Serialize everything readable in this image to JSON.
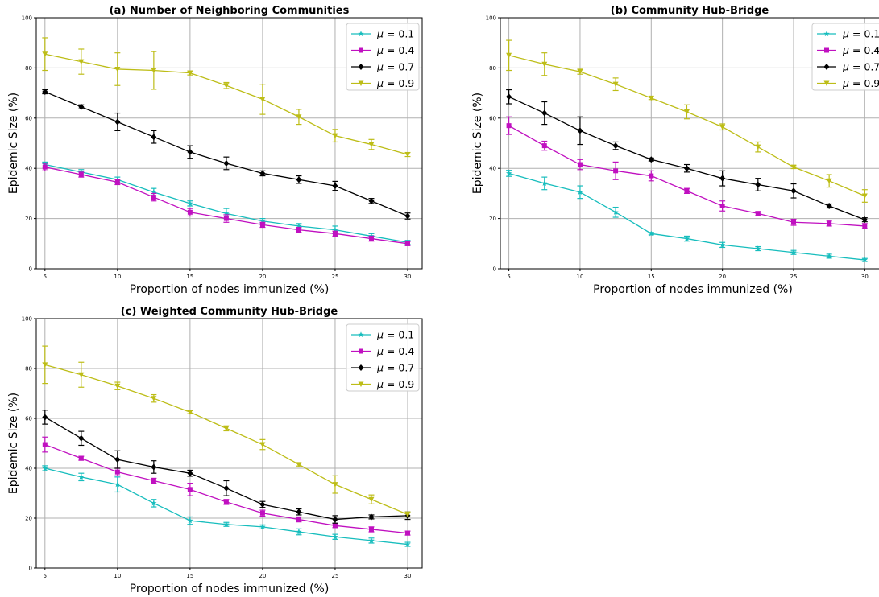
{
  "chart_data": [
    {
      "type": "line",
      "title": "(a)   Number of Neighboring Communities",
      "xlabel": "Proportion of nodes immunized (%)",
      "ylabel": "Epidemic Size (%)",
      "xlim": [
        4.4,
        31.0
      ],
      "ylim": [
        0,
        100
      ],
      "xticks": [
        5,
        10,
        15,
        20,
        25,
        30
      ],
      "yticks": [
        0,
        20,
        40,
        60,
        80,
        100
      ],
      "grid": true,
      "legend_position": "top-right",
      "x": [
        5,
        7.5,
        10,
        12.5,
        15,
        17.5,
        20,
        22.5,
        25,
        27.5,
        30
      ],
      "series": [
        {
          "name": "μ = 0.1",
          "legend_symbol": "μ",
          "legend_value": " = 0.1",
          "color": "#17bdbd",
          "marker": "star",
          "values": [
            41.5,
            38.5,
            35.5,
            30.5,
            26,
            22,
            19,
            17,
            15.5,
            13,
            10.5
          ],
          "errors": [
            1,
            1,
            1,
            1.5,
            1,
            2,
            1,
            1,
            1.5,
            1,
            0.8
          ]
        },
        {
          "name": "μ = 0.4",
          "legend_symbol": "μ",
          "legend_value": " = 0.4",
          "color": "#c010c0",
          "marker": "square",
          "values": [
            40.5,
            37.5,
            34.5,
            28.5,
            22.5,
            20,
            17.5,
            15.5,
            14,
            12,
            10
          ],
          "errors": [
            1.5,
            1,
            1,
            1.5,
            1.5,
            1.5,
            1,
            1,
            1,
            1,
            0.8
          ]
        },
        {
          "name": "μ = 0.7",
          "legend_symbol": "μ",
          "legend_value": " = 0.7",
          "color": "#000000",
          "marker": "diamond",
          "values": [
            70.5,
            64.5,
            58.5,
            52.5,
            46.5,
            42,
            38,
            35.5,
            33,
            27,
            21
          ],
          "errors": [
            0.8,
            0.8,
            3.5,
            2.5,
            2.5,
            2.5,
            1,
            1.5,
            1.8,
            1,
            1.2
          ]
        },
        {
          "name": "μ = 0.9",
          "legend_symbol": "μ",
          "legend_value": " = 0.9",
          "color": "#bdbd17",
          "marker": "triangle-down",
          "values": [
            85.5,
            82.5,
            79.5,
            79,
            78,
            73,
            67.5,
            60.5,
            53,
            49.5,
            45.5
          ],
          "errors": [
            6.5,
            5,
            6.5,
            7.5,
            0.8,
            1.2,
            6,
            3,
            2.5,
            2,
            0.8
          ]
        }
      ]
    },
    {
      "type": "line",
      "title": "(b)   Community Hub-Bridge",
      "xlabel": "Proportion of nodes immunized (%)",
      "ylabel": "Epidemic Size (%)",
      "xlim": [
        4.4,
        31.0
      ],
      "ylim": [
        0,
        100
      ],
      "xticks": [
        5,
        10,
        15,
        20,
        25,
        30
      ],
      "yticks": [
        0,
        20,
        40,
        60,
        80,
        100
      ],
      "grid": true,
      "legend_position": "top-right",
      "x": [
        5,
        7.5,
        10,
        12.5,
        15,
        17.5,
        20,
        22.5,
        25,
        27.5,
        30
      ],
      "series": [
        {
          "name": "μ = 0.1",
          "legend_symbol": "μ",
          "legend_value": " = 0.1",
          "color": "#17bdbd",
          "marker": "star",
          "values": [
            38,
            34,
            30.5,
            22.5,
            14,
            12,
            9.5,
            8,
            6.5,
            5,
            3.5
          ],
          "errors": [
            1.2,
            2.5,
            2.5,
            2,
            0.5,
            1,
            1,
            0.8,
            0.8,
            0.8,
            0.6
          ]
        },
        {
          "name": "μ = 0.4",
          "legend_symbol": "μ",
          "legend_value": " = 0.4",
          "color": "#c010c0",
          "marker": "square",
          "values": [
            57,
            49,
            41.5,
            39,
            37,
            31,
            25,
            22,
            18.5,
            18,
            17
          ],
          "errors": [
            3.5,
            1.8,
            2,
            3.5,
            2,
            1,
            2,
            0.8,
            1.2,
            1,
            1
          ]
        },
        {
          "name": "μ = 0.7",
          "legend_symbol": "μ",
          "legend_value": " = 0.7",
          "color": "#000000",
          "marker": "diamond",
          "values": [
            68.5,
            62,
            55,
            49,
            43.5,
            40,
            36,
            33.5,
            31,
            25,
            19.5
          ],
          "errors": [
            2.8,
            4.5,
            5.5,
            1.5,
            0.6,
            1.5,
            3,
            2.5,
            2.8,
            0.8,
            0.8
          ]
        },
        {
          "name": "μ = 0.9",
          "legend_symbol": "μ",
          "legend_value": " = 0.9",
          "color": "#bdbd17",
          "marker": "triangle-down",
          "values": [
            85,
            81.5,
            78.5,
            73.5,
            68,
            62.5,
            56.5,
            48.5,
            40.5,
            35,
            29
          ],
          "errors": [
            6,
            4.5,
            1,
            2.5,
            0.6,
            2.8,
            1.2,
            2,
            0.6,
            2.5,
            2.5
          ]
        }
      ]
    },
    {
      "type": "line",
      "title": "(c)   Weighted Community Hub-Bridge",
      "xlabel": "Proportion of nodes immunized (%)",
      "ylabel": "Epidemic Size (%)",
      "xlim": [
        4.4,
        31.0
      ],
      "ylim": [
        0,
        100
      ],
      "xticks": [
        5,
        10,
        15,
        20,
        25,
        30
      ],
      "yticks": [
        0,
        20,
        40,
        60,
        80,
        100
      ],
      "grid": true,
      "legend_position": "top-right",
      "x": [
        5,
        7.5,
        10,
        12.5,
        15,
        17.5,
        20,
        22.5,
        25,
        27.5,
        30
      ],
      "series": [
        {
          "name": "μ = 0.1",
          "legend_symbol": "μ",
          "legend_value": " = 0.1",
          "color": "#17bdbd",
          "marker": "star",
          "values": [
            40,
            36.5,
            33.5,
            26,
            19,
            17.5,
            16.5,
            14.5,
            12.5,
            11,
            9.5
          ],
          "errors": [
            1,
            1.5,
            3,
            1.5,
            1.5,
            0.8,
            0.8,
            1.2,
            1,
            1,
            0.8
          ]
        },
        {
          "name": "μ = 0.4",
          "legend_symbol": "μ",
          "legend_value": " = 0.4",
          "color": "#c010c0",
          "marker": "square",
          "values": [
            49.5,
            44,
            38.5,
            35,
            31.5,
            26.5,
            22,
            19.5,
            17,
            15.5,
            14
          ],
          "errors": [
            3,
            0.8,
            1.5,
            1,
            2.5,
            1,
            1.2,
            1,
            0.8,
            1,
            0.8
          ]
        },
        {
          "name": "μ = 0.7",
          "legend_symbol": "μ",
          "legend_value": " = 0.7",
          "color": "#000000",
          "marker": "diamond",
          "values": [
            60.5,
            52,
            43.5,
            40.5,
            38,
            32,
            25.5,
            22.5,
            19.5,
            20.5,
            21
          ],
          "errors": [
            2.8,
            2.8,
            3.5,
            2.5,
            1.2,
            3,
            1.2,
            1.2,
            1.5,
            0.8,
            1.5
          ]
        },
        {
          "name": "μ = 0.9",
          "legend_symbol": "μ",
          "legend_value": " = 0.9",
          "color": "#bdbd17",
          "marker": "triangle-down",
          "values": [
            81.5,
            77.5,
            73,
            68,
            62.5,
            56,
            49.5,
            41.5,
            33.5,
            27.5,
            21.5
          ],
          "errors": [
            7.5,
            5,
            1.5,
            1.5,
            0.6,
            1,
            2,
            0.6,
            3.5,
            1.8,
            1
          ]
        }
      ]
    }
  ]
}
